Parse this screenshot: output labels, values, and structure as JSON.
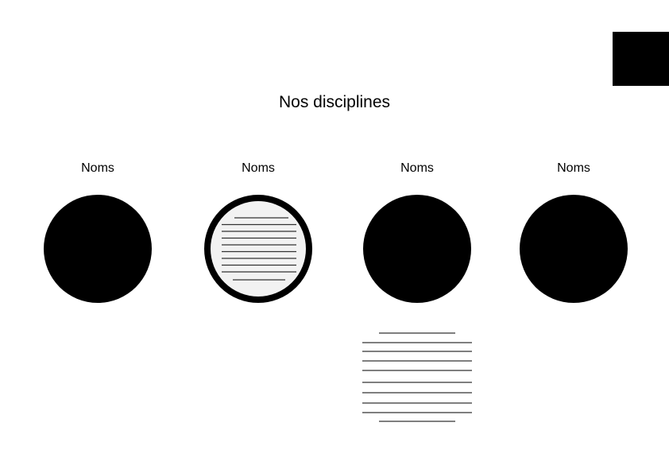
{
  "page": {
    "title": "Nos disciplines"
  },
  "disciplines": [
    {
      "label": "Noms",
      "state": "default"
    },
    {
      "label": "Noms",
      "state": "hovered"
    },
    {
      "label": "Noms",
      "state": "default"
    },
    {
      "label": "Noms",
      "state": "default"
    }
  ],
  "colors": {
    "fill": "#000000",
    "background": "#ffffff",
    "hover_fill": "#f2f2f2"
  },
  "icons": {
    "corner": "menu-block-icon",
    "text_placeholder": "text-lines-placeholder"
  }
}
